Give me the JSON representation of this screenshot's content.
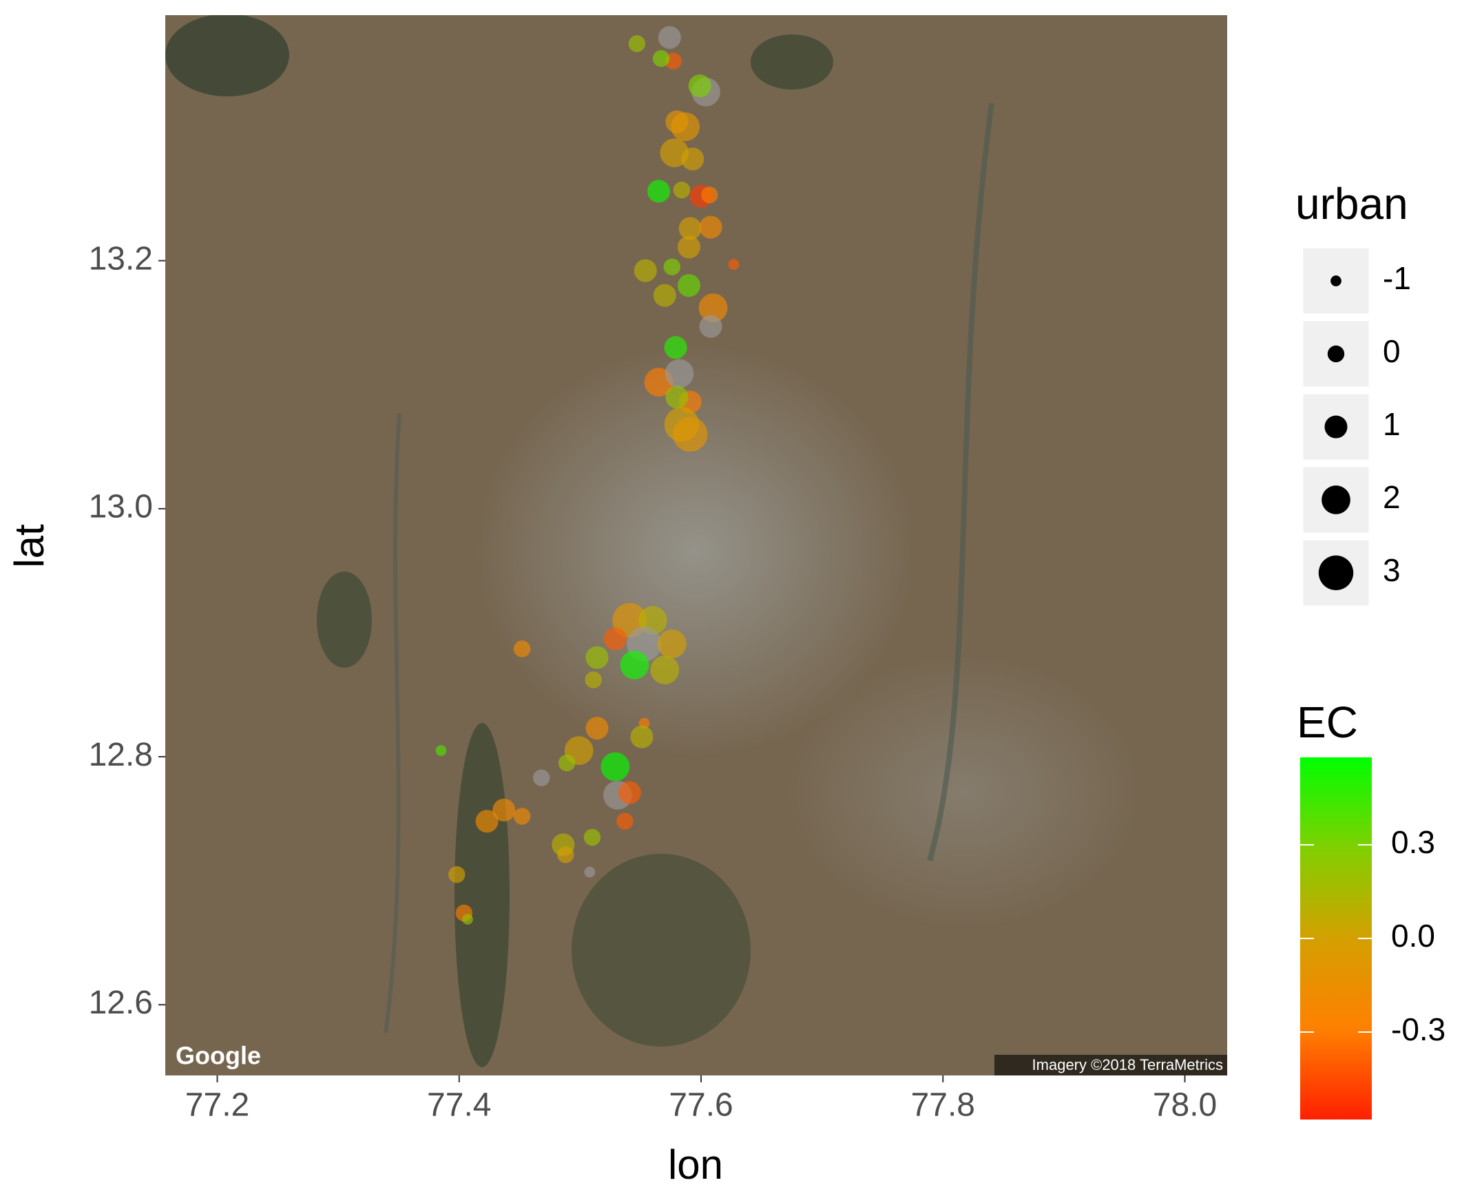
{
  "chart_data": {
    "type": "scatter",
    "x_label": "lon",
    "y_label": "lat",
    "annotations": [
      "Google",
      "Imagery ©2018 TerraMetrics"
    ],
    "xlim": [
      77.157,
      78.035
    ],
    "ylim": [
      12.543,
      13.398
    ],
    "xticks": [
      77.2,
      77.4,
      77.6,
      77.8,
      {
        "value": 78.0,
        "label": "78.0"
      }
    ],
    "yticks": [
      12.6,
      12.8,
      {
        "value": 13.0,
        "label": "13.0"
      },
      13.2
    ],
    "x": [
      77.547,
      77.574,
      77.577,
      77.567,
      77.604,
      77.599,
      77.58,
      77.587,
      77.578,
      77.593,
      77.565,
      77.584,
      77.6,
      77.607,
      77.591,
      77.608,
      77.554,
      77.576,
      77.59,
      77.627,
      77.59,
      77.57,
      77.61,
      77.608,
      77.579,
      77.565,
      77.582,
      77.591,
      77.584,
      77.591,
      77.58,
      77.541,
      77.56,
      77.553,
      77.576,
      77.514,
      77.545,
      77.57,
      77.529,
      77.511,
      77.452,
      77.553,
      77.551,
      77.514,
      77.499,
      77.529,
      77.489,
      77.468,
      77.531,
      77.541,
      77.537,
      77.385,
      77.437,
      77.423,
      77.452,
      77.51,
      77.486,
      77.488,
      77.508,
      77.398,
      77.404,
      77.407
    ],
    "y": [
      13.375,
      13.38,
      13.361,
      13.363,
      13.336,
      13.341,
      13.312,
      13.308,
      13.287,
      13.282,
      13.256,
      13.257,
      13.252,
      13.253,
      13.226,
      13.227,
      13.192,
      13.195,
      13.211,
      13.197,
      13.18,
      13.172,
      13.162,
      13.147,
      13.13,
      13.102,
      13.109,
      13.086,
      13.068,
      13.06,
      13.09,
      12.91,
      12.91,
      12.891,
      12.891,
      12.88,
      12.874,
      12.87,
      12.895,
      12.862,
      12.887,
      12.827,
      12.816,
      12.823,
      12.805,
      12.792,
      12.795,
      12.783,
      12.769,
      12.771,
      12.748,
      12.805,
      12.757,
      12.748,
      12.752,
      12.735,
      12.729,
      12.721,
      12.707,
      12.705,
      12.674,
      12.669
    ],
    "size": [
      0,
      1,
      0,
      0,
      2,
      1,
      1,
      2,
      2,
      1,
      1,
      0,
      1,
      0,
      1,
      1,
      1,
      0,
      1,
      -1,
      1,
      1,
      2,
      1,
      1,
      2,
      2,
      1,
      3,
      3,
      1,
      3,
      2,
      3,
      2,
      1,
      2,
      2,
      1,
      0,
      0,
      -1,
      1,
      1,
      2,
      2,
      0,
      0,
      2,
      1,
      0,
      -1,
      1,
      1,
      0,
      0,
      1,
      0,
      -1,
      0,
      0,
      -1
    ],
    "ec": [
      0.2,
      null,
      -0.4,
      0.3,
      null,
      0.3,
      -0.1,
      -0.1,
      0.0,
      0.0,
      0.55,
      0.1,
      -0.5,
      -0.3,
      0.0,
      -0.2,
      0.1,
      0.3,
      0.0,
      -0.4,
      0.35,
      0.1,
      -0.2,
      null,
      0.5,
      -0.3,
      null,
      -0.3,
      0.0,
      -0.1,
      0.2,
      -0.1,
      0.1,
      null,
      0.0,
      0.2,
      0.55,
      0.1,
      -0.4,
      0.1,
      -0.2,
      -0.3,
      0.1,
      -0.2,
      0.0,
      0.6,
      0.2,
      null,
      null,
      -0.4,
      -0.4,
      0.4,
      -0.2,
      -0.2,
      -0.2,
      0.2,
      0.1,
      0.0,
      null,
      0.0,
      -0.3,
      0.2
    ],
    "na_color": "#9a9a9a",
    "opacity": 0.65,
    "size_legend": {
      "title": "urban",
      "values": [
        -1,
        0,
        1,
        2,
        3
      ]
    },
    "color_legend": {
      "title": "EC",
      "limits": [
        -0.58,
        0.58
      ],
      "ticks": [
        {
          "value": 0.3,
          "label": "0.3"
        },
        {
          "value": 0.0,
          "label": "0.0"
        },
        {
          "value": -0.3,
          "label": "-0.3"
        }
      ],
      "colors": [
        "#ff2000",
        "#ff8000",
        "#d4a000",
        "#80d000",
        "#00ff00"
      ]
    }
  }
}
